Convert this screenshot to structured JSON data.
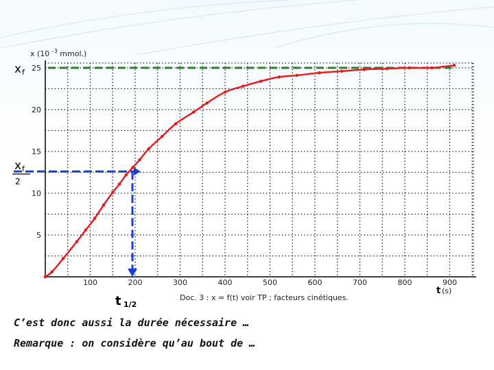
{
  "chart_data": {
    "type": "line",
    "ylabel": "x (10 -3 mmol.)",
    "ylabel_parts": {
      "pre": "x (10 ",
      "sup": "-3",
      "post": " mmol.)"
    },
    "xlabel": "t (s)",
    "xlabel_parts": {
      "var": "t",
      "unit": "(s)"
    },
    "xlim": [
      0,
      950
    ],
    "ylim": [
      0,
      26
    ],
    "xticks": [
      100,
      200,
      300,
      400,
      500,
      600,
      700,
      800,
      900
    ],
    "yticks": [
      5,
      10,
      15,
      20,
      25
    ],
    "grid": true,
    "series": [
      {
        "color": "#e02020",
        "x": [
          0,
          15,
          40,
          70,
          90,
          110,
          130,
          150,
          165,
          180,
          195,
          210,
          230,
          260,
          290,
          330,
          360,
          400,
          440,
          480,
          520,
          560,
          610,
          660,
          710,
          760,
          810,
          860,
          910
        ],
        "y": [
          0,
          0.6,
          2.2,
          4.2,
          5.6,
          7.0,
          8.6,
          10.1,
          11.1,
          12.2,
          13.1,
          14.0,
          15.3,
          16.8,
          18.3,
          19.7,
          20.8,
          22.1,
          22.8,
          23.4,
          23.9,
          24.1,
          24.4,
          24.6,
          24.8,
          24.9,
          25.0,
          25.0,
          25.3
        ]
      }
    ],
    "annotations": {
      "xf": {
        "text": "x",
        "sub": "f",
        "y": 25,
        "color": "#2e7d2e"
      },
      "half": {
        "text": "x",
        "sub": "f",
        "denominator": "2",
        "y": 12.6,
        "x": 200,
        "color": "#1a3fd0"
      },
      "t_half": {
        "text": "t",
        "sub": "1/2"
      }
    }
  },
  "caption": "Doc. 3 : x = f(t) voir TP ; facteurs cinétiques.",
  "text_lines": [
    "C’est donc aussi la durée nécessaire …",
    "Remarque : on considère qu’au bout de …"
  ]
}
